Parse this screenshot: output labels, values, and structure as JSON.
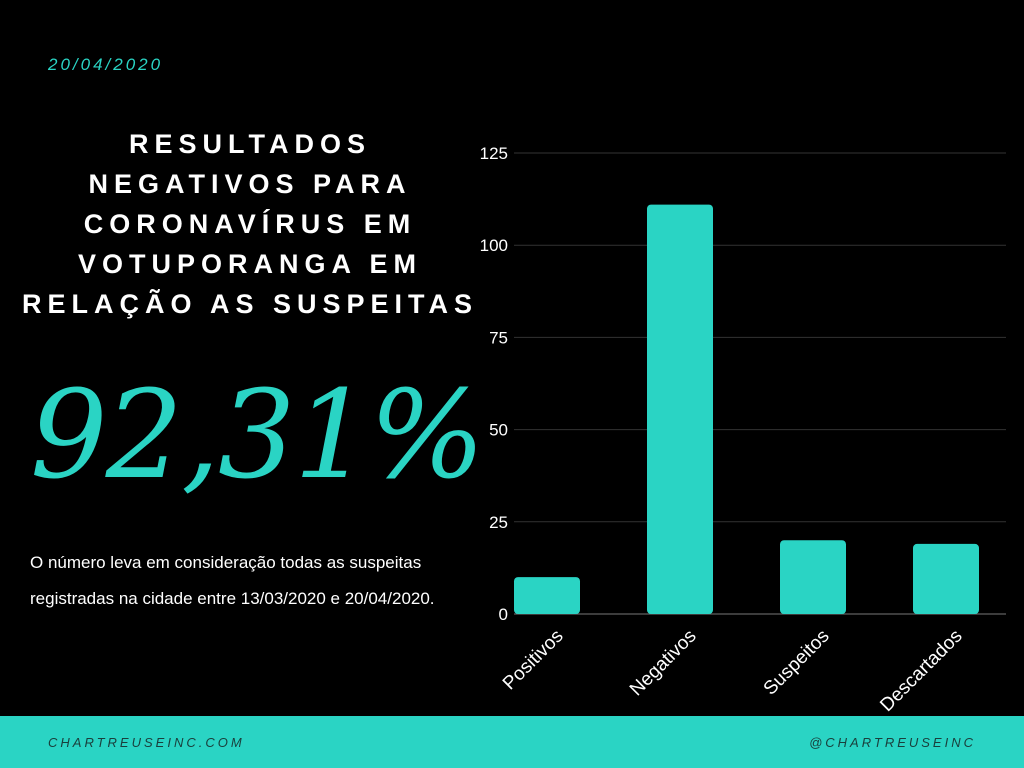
{
  "date": "20/04/2020",
  "title": "RESULTADOS NEGATIVOS PARA CORONAVÍRUS EM VOTUPORANGA EM RELAÇÃO AS SUSPEITAS",
  "title_lines": [
    "RESULTADOS",
    "NEGATIVOS PARA",
    "CORONAVÍRUS EM",
    "VOTUPORANGA EM",
    "RELAÇÃO AS SUSPEITAS"
  ],
  "percentage": "92,31%",
  "note": "O número leva em consideração todas as suspeitas registradas na cidade entre 13/03/2020 e 20/04/2020.",
  "footer": {
    "left": "CHARTREUSEINC.COM",
    "right": "@CHARTREUSEINC"
  },
  "colors": {
    "accent": "#2ad4c4",
    "background": "#000000"
  },
  "chart_data": {
    "type": "bar",
    "categories": [
      "Positivos",
      "Negativos",
      "Suspeitos",
      "Descartados"
    ],
    "values": [
      10,
      111,
      20,
      19
    ],
    "ylim": [
      0,
      125
    ],
    "yticks": [
      0,
      25,
      50,
      75,
      100,
      125
    ],
    "grid": true,
    "title": "",
    "xlabel": "",
    "ylabel": ""
  }
}
